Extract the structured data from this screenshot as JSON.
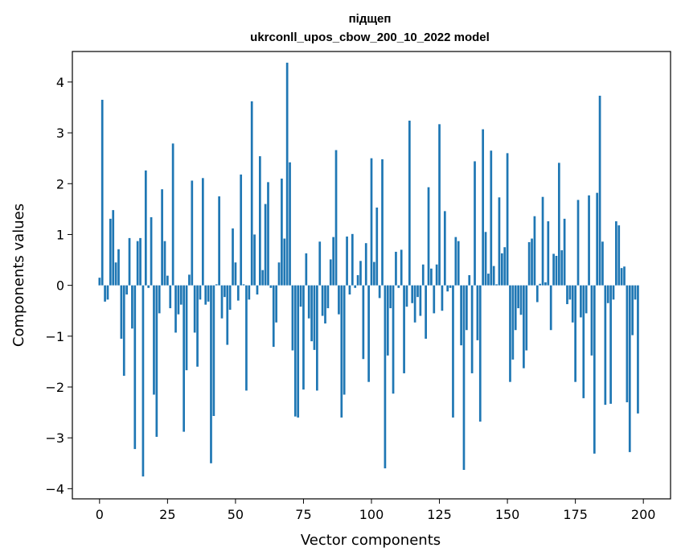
{
  "chart_data": {
    "type": "bar",
    "title_line1": "підщеп",
    "title_line2": "ukrconll_upos_cbow_200_10_2022 model",
    "xlabel": "Vector components",
    "ylabel": "Components values",
    "xlim": [
      -10,
      210
    ],
    "ylim": [
      -4.2,
      4.6
    ],
    "xticks": [
      0,
      25,
      50,
      75,
      100,
      125,
      150,
      175,
      200
    ],
    "xtick_labels": [
      "0",
      "25",
      "50",
      "75",
      "100",
      "125",
      "150",
      "175",
      "200"
    ],
    "yticks": [
      -4,
      -3,
      -2,
      -1,
      0,
      1,
      2,
      3,
      4
    ],
    "ytick_labels": [
      "−4",
      "−3",
      "−2",
      "−1",
      "0",
      "1",
      "2",
      "3",
      "4"
    ],
    "grid": false,
    "bar_color": "#1f77b4",
    "values": [
      0.15,
      3.65,
      -0.32,
      -0.28,
      1.31,
      1.48,
      0.45,
      0.71,
      -1.05,
      -1.78,
      -0.18,
      0.93,
      -0.85,
      -3.22,
      0.87,
      0.93,
      -3.76,
      2.26,
      -0.05,
      1.34,
      -2.15,
      -2.98,
      -0.55,
      1.89,
      0.87,
      0.19,
      -0.45,
      2.79,
      -0.93,
      -0.57,
      -0.38,
      -2.88,
      -1.67,
      0.21,
      2.06,
      -0.93,
      -1.6,
      -0.28,
      2.11,
      -0.38,
      -0.32,
      -3.5,
      -2.57,
      0.02,
      1.75,
      -0.65,
      -0.23,
      -1.17,
      -0.48,
      1.12,
      0.45,
      -0.3,
      2.18,
      0.02,
      -2.07,
      -0.28,
      3.62,
      1.0,
      -0.18,
      2.54,
      0.3,
      1.6,
      2.03,
      -0.05,
      -1.21,
      -0.73,
      0.45,
      2.1,
      0.92,
      4.38,
      2.42,
      -1.28,
      -2.58,
      -2.6,
      -0.42,
      -2.05,
      0.63,
      -0.65,
      -1.1,
      -1.27,
      -2.07,
      0.86,
      -0.6,
      -0.75,
      -0.45,
      0.51,
      0.95,
      2.66,
      -0.57,
      -2.6,
      -2.15,
      0.96,
      -0.18,
      1.01,
      -0.05,
      0.2,
      0.48,
      -1.45,
      0.83,
      -1.9,
      2.5,
      0.46,
      1.53,
      -0.25,
      2.48,
      -3.6,
      -1.38,
      -0.45,
      -2.13,
      0.66,
      -0.05,
      0.7,
      -1.73,
      -0.42,
      3.24,
      -0.35,
      -0.73,
      -0.23,
      -0.6,
      0.41,
      -1.05,
      1.93,
      0.33,
      -0.55,
      0.41,
      3.17,
      -0.5,
      1.46,
      -0.12,
      -0.05,
      -2.6,
      0.95,
      0.87,
      -1.18,
      -3.63,
      -0.88,
      0.2,
      -1.73,
      2.44,
      -1.08,
      -2.68,
      3.07,
      1.05,
      0.23,
      2.65,
      0.38,
      0.02,
      1.73,
      0.63,
      0.75,
      2.6,
      -1.9,
      -1.46,
      -0.88,
      -0.45,
      -0.58,
      -1.63,
      -1.28,
      0.85,
      0.92,
      1.36,
      -0.33,
      0.03,
      1.74,
      0.06,
      1.26,
      -0.88,
      0.62,
      0.58,
      2.41,
      0.69,
      1.31,
      -0.37,
      -0.28,
      -0.73,
      -1.9,
      1.68,
      -0.63,
      -2.22,
      -0.55,
      1.77,
      -1.38,
      -3.31,
      1.82,
      3.73,
      0.86,
      -2.35,
      -0.35,
      -2.33,
      -0.28,
      1.26,
      1.18,
      0.34,
      0.37,
      -2.3,
      -3.28,
      -0.98,
      -0.28,
      -2.52
    ]
  }
}
